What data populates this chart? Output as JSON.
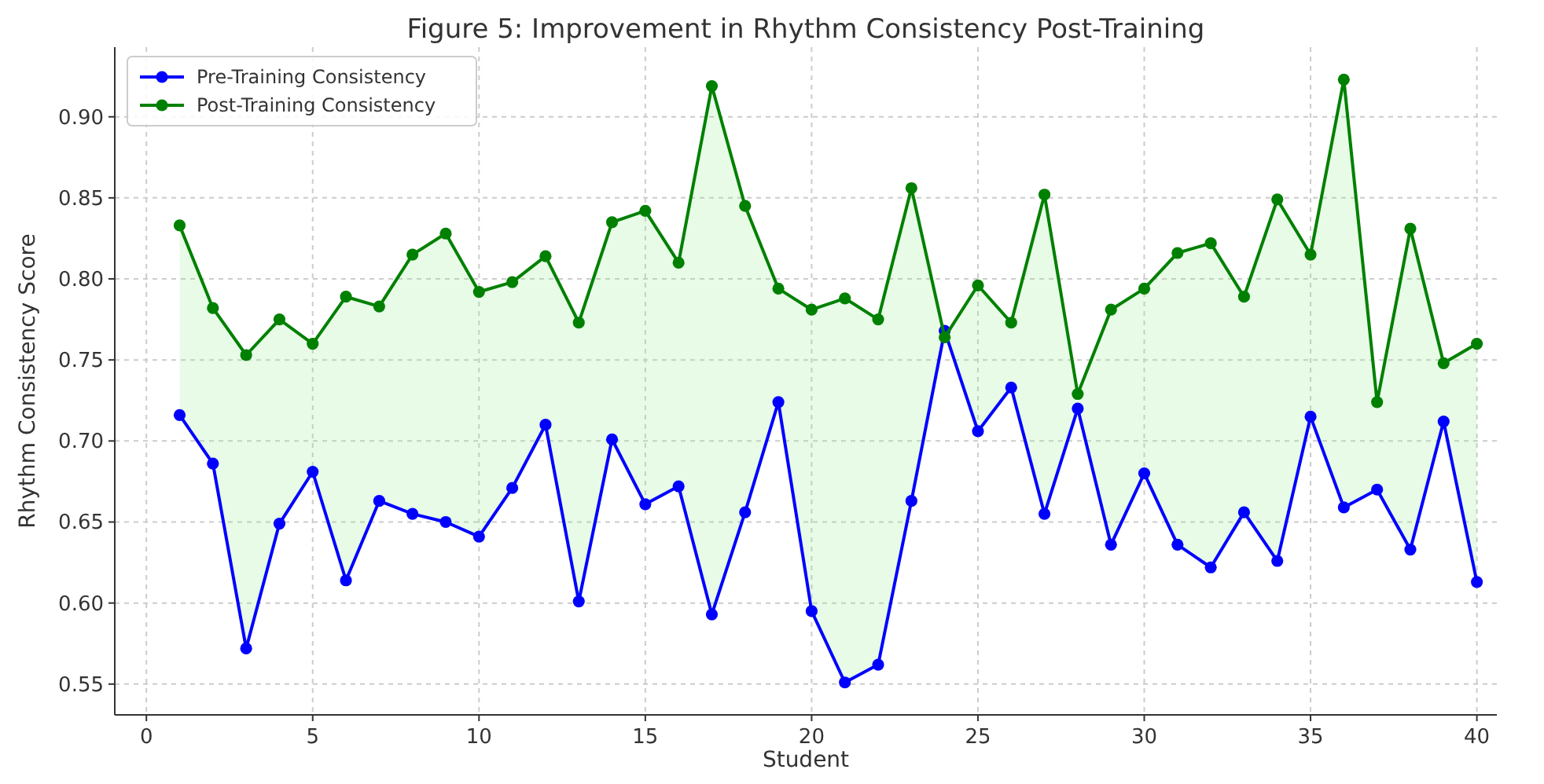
{
  "chart_data": {
    "type": "line",
    "title": "Figure 5: Improvement in Rhythm Consistency Post-Training",
    "xlabel": "Student",
    "ylabel": "Rhythm Consistency Score",
    "x": [
      1,
      2,
      3,
      4,
      5,
      6,
      7,
      8,
      9,
      10,
      11,
      12,
      13,
      14,
      15,
      16,
      17,
      18,
      19,
      20,
      21,
      22,
      23,
      24,
      25,
      26,
      27,
      28,
      29,
      30,
      31,
      32,
      33,
      34,
      35,
      36,
      37,
      38,
      39,
      40
    ],
    "series": [
      {
        "name": "Pre-Training Consistency",
        "color": "#0000ff",
        "values": [
          0.716,
          0.686,
          0.572,
          0.649,
          0.681,
          0.614,
          0.663,
          0.655,
          0.65,
          0.641,
          0.671,
          0.71,
          0.601,
          0.701,
          0.661,
          0.672,
          0.593,
          0.656,
          0.724,
          0.595,
          0.551,
          0.562,
          0.663,
          0.768,
          0.706,
          0.733,
          0.655,
          0.72,
          0.636,
          0.68,
          0.636,
          0.622,
          0.656,
          0.626,
          0.715,
          0.659,
          0.67,
          0.633,
          0.712,
          0.613
        ]
      },
      {
        "name": "Post-Training Consistency",
        "color": "#008000",
        "values": [
          0.833,
          0.782,
          0.753,
          0.775,
          0.76,
          0.789,
          0.783,
          0.815,
          0.828,
          0.792,
          0.798,
          0.814,
          0.773,
          0.835,
          0.842,
          0.81,
          0.919,
          0.845,
          0.794,
          0.781,
          0.788,
          0.775,
          0.856,
          0.764,
          0.796,
          0.773,
          0.852,
          0.729,
          0.781,
          0.794,
          0.816,
          0.822,
          0.789,
          0.849,
          0.815,
          0.923,
          0.724,
          0.831,
          0.748,
          0.76
        ],
        "lower": [
          0.716,
          0.686,
          0.572,
          0.649,
          0.681,
          0.614,
          0.663,
          0.655,
          0.65,
          0.641,
          0.671,
          0.71,
          0.601,
          0.701,
          0.661,
          0.672,
          0.593,
          0.656,
          0.724,
          0.595,
          0.551,
          0.562,
          0.663,
          0.768,
          0.706,
          0.733,
          0.655,
          0.72,
          0.636,
          0.68,
          0.636,
          0.622,
          0.656,
          0.626,
          0.715,
          0.659,
          0.67,
          0.633,
          0.712,
          0.613
        ],
        "upper": [
          0.833,
          0.782,
          0.753,
          0.775,
          0.76,
          0.789,
          0.783,
          0.815,
          0.828,
          0.792,
          0.798,
          0.814,
          0.773,
          0.835,
          0.842,
          0.81,
          0.919,
          0.845,
          0.794,
          0.781,
          0.788,
          0.775,
          0.856,
          0.764,
          0.796,
          0.773,
          0.852,
          0.729,
          0.781,
          0.794,
          0.816,
          0.822,
          0.789,
          0.849,
          0.815,
          0.923,
          0.724,
          0.831,
          0.748,
          0.76
        ]
      }
    ],
    "xlim": [
      -0.95,
      40.6
    ],
    "xticks": [
      0,
      5,
      10,
      15,
      20,
      25,
      30,
      35,
      40
    ],
    "ylim": [
      0.531,
      0.943
    ],
    "yticks": [
      {
        "value": 0.55,
        "label": "0.55"
      },
      {
        "value": 0.6,
        "label": "0.60"
      },
      {
        "value": 0.65,
        "label": "0.65"
      },
      {
        "value": 0.7,
        "label": "0.70"
      },
      {
        "value": 0.75,
        "label": "0.75"
      },
      {
        "value": 0.8,
        "label": "0.80"
      },
      {
        "value": 0.85,
        "label": "0.85"
      },
      {
        "value": 0.9,
        "label": "0.90"
      }
    ],
    "grid": true,
    "legend": "top left",
    "marker": "circle",
    "line_style": "solid"
  }
}
